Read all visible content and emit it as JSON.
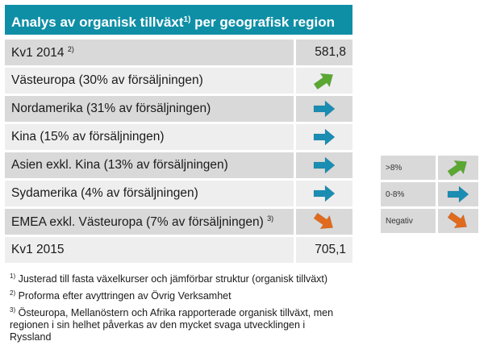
{
  "title": {
    "text": "Analys av organisk tillväxt",
    "sup": "1)",
    "rest": " per geografisk region"
  },
  "rows": [
    {
      "label": "Kv1 2014",
      "sup": "2)",
      "value": "581,8"
    },
    {
      "label": "Västeuropa (30% av försäljningen)",
      "arrow": "up"
    },
    {
      "label": "Nordamerika (31% av försäljningen)",
      "arrow": "flat"
    },
    {
      "label": "Kina (15% av försäljningen)",
      "arrow": "flat"
    },
    {
      "label": "Asien exkl. Kina (13% av försäljningen)",
      "arrow": "flat"
    },
    {
      "label": "Sydamerika (4% av försäljningen)",
      "arrow": "flat"
    },
    {
      "label": "EMEA exkl. Västeuropa (7% av försäljningen)",
      "sup": "3)",
      "arrow": "down"
    },
    {
      "label": "Kv1 2015",
      "value": "705,1"
    }
  ],
  "footnotes": [
    {
      "sup": "1)",
      "text": " Justerad till fasta växelkurser och jämförbar struktur (organisk tillväxt)"
    },
    {
      "sup": "2)",
      "text": " Proforma efter avyttringen av Övrig Verksamhet"
    },
    {
      "sup": "3)",
      "text": " Östeuropa, Mellanöstern och Afrika rapporterade organisk tillväxt, men regionen i sin helhet påverkas av den mycket svaga utvecklingen i Ryssland"
    }
  ],
  "legend": [
    {
      "label": ">8%",
      "arrow": "up"
    },
    {
      "label": "0-8%",
      "arrow": "flat"
    },
    {
      "label": "Negativ",
      "arrow": "down"
    }
  ],
  "colors": {
    "header": "#0f8fa6",
    "arrow_up": "#5aa832",
    "arrow_flat": "#1a8db3",
    "arrow_down": "#e06a1e"
  }
}
